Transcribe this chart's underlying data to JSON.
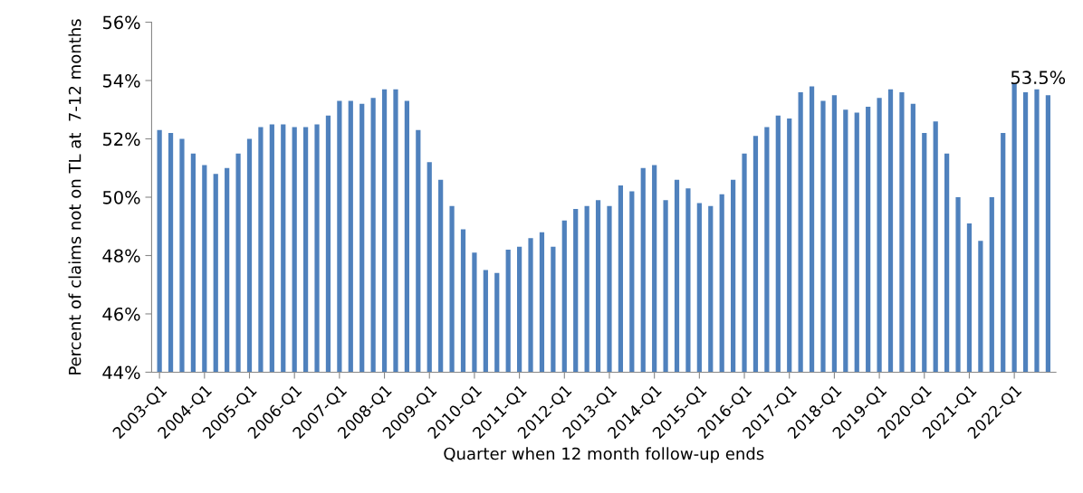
{
  "chart_data": {
    "type": "bar",
    "xlabel": "Quarter when 12 month follow-up ends",
    "ylabel": "Percent of claims not on TL at  7-12 months",
    "categories": [
      "2003-Q1",
      null,
      null,
      null,
      "2004-Q1",
      null,
      null,
      null,
      "2005-Q1",
      null,
      null,
      null,
      "2006-Q1",
      null,
      null,
      null,
      "2007-Q1",
      null,
      null,
      null,
      "2008-Q1",
      null,
      null,
      null,
      "2009-Q1",
      null,
      null,
      null,
      "2010-Q1",
      null,
      null,
      null,
      "2011-Q1",
      null,
      null,
      null,
      "2012-Q1",
      null,
      null,
      null,
      "2013-Q1",
      null,
      null,
      null,
      "2014-Q1",
      null,
      null,
      null,
      "2015-Q1",
      null,
      null,
      null,
      "2016-Q1",
      null,
      null,
      null,
      "2017-Q1",
      null,
      null,
      null,
      "2018-Q1",
      null,
      null,
      null,
      "2019-Q1",
      null,
      null,
      null,
      "2020-Q1",
      null,
      null,
      null,
      "2021-Q1",
      null,
      null,
      null,
      "2022-Q1",
      null,
      null,
      null
    ],
    "values": [
      52.3,
      52.2,
      52.0,
      51.5,
      51.1,
      50.8,
      51.0,
      51.5,
      52.0,
      52.4,
      52.5,
      52.5,
      52.4,
      52.4,
      52.5,
      52.8,
      53.3,
      53.3,
      53.2,
      53.4,
      53.7,
      53.7,
      53.3,
      52.3,
      51.2,
      50.6,
      49.7,
      48.9,
      48.1,
      47.5,
      47.4,
      48.2,
      48.3,
      48.6,
      48.8,
      48.3,
      49.2,
      49.6,
      49.7,
      49.9,
      49.7,
      50.4,
      50.2,
      51.0,
      51.1,
      49.9,
      50.6,
      50.3,
      49.8,
      49.7,
      50.1,
      50.6,
      51.5,
      52.1,
      52.4,
      52.8,
      52.7,
      53.6,
      53.8,
      53.3,
      53.5,
      53.0,
      52.9,
      53.1,
      53.4,
      53.7,
      53.6,
      53.2,
      52.2,
      52.6,
      51.5,
      50.0,
      49.1,
      48.5,
      50.0,
      52.2,
      53.9,
      53.6,
      53.7,
      53.5
    ],
    "value_labels": [
      null,
      null,
      null,
      null,
      null,
      null,
      null,
      null,
      null,
      null,
      null,
      null,
      null,
      null,
      null,
      null,
      null,
      null,
      null,
      null,
      null,
      null,
      null,
      null,
      null,
      null,
      null,
      null,
      null,
      null,
      null,
      null,
      null,
      null,
      null,
      null,
      null,
      null,
      null,
      null,
      null,
      null,
      null,
      null,
      null,
      null,
      null,
      null,
      null,
      null,
      null,
      null,
      null,
      null,
      null,
      null,
      null,
      null,
      null,
      null,
      null,
      null,
      null,
      null,
      null,
      null,
      null,
      null,
      null,
      null,
      null,
      null,
      null,
      null,
      null,
      null,
      null,
      null,
      null,
      "53.5%"
    ],
    "color": "#4f81bd",
    "ylim": [
      44,
      56
    ],
    "yticks": [
      {
        "value": 44,
        "label": "44%"
      },
      {
        "value": 46,
        "label": "46%"
      },
      {
        "value": 48,
        "label": "48%"
      },
      {
        "value": 50,
        "label": "50%"
      },
      {
        "value": 52,
        "label": "52%"
      },
      {
        "value": 54,
        "label": "54%"
      },
      {
        "value": 56,
        "label": "56%"
      }
    ],
    "grid": false,
    "legend": false
  }
}
